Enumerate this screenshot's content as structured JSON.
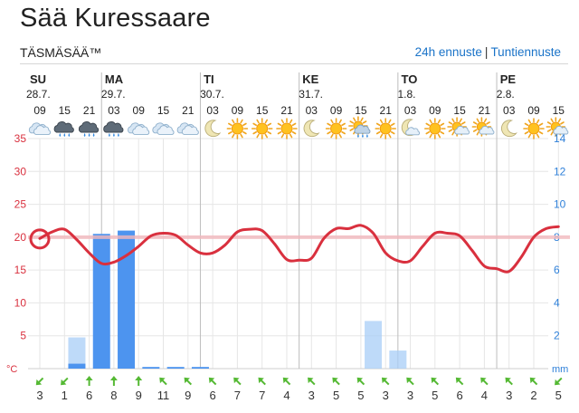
{
  "header": {
    "title": "Sää Kuressaare",
    "subtitle": "TÄSMÄSÄÄ™",
    "link_24h": "24h ennuste",
    "link_separator": "|",
    "link_hourly": "Tuntiennuste"
  },
  "days": [
    {
      "name": "SU",
      "date": "28.7."
    },
    {
      "name": "MA",
      "date": "29.7."
    },
    {
      "name": "TI",
      "date": "30.7."
    },
    {
      "name": "KE",
      "date": "31.7."
    },
    {
      "name": "TO",
      "date": "1.8."
    },
    {
      "name": "PE",
      "date": "2.8."
    }
  ],
  "chart_data": {
    "type": "line",
    "hours": [
      "09",
      "15",
      "21",
      "03",
      "09",
      "15",
      "21",
      "03",
      "09",
      "15",
      "21",
      "03",
      "09",
      "15",
      "21",
      "03",
      "09",
      "15",
      "21",
      "03",
      "09",
      "15"
    ],
    "icons": [
      "cloudy",
      "rain-cloud",
      "rain-cloud",
      "rain-cloud",
      "cloudy",
      "cloudy",
      "cloudy",
      "moon",
      "sun",
      "sun",
      "sun",
      "moon",
      "sun",
      "sun-rain",
      "sun",
      "moon-cloud",
      "sun",
      "sun-cloud",
      "sun-cloud",
      "moon",
      "sun",
      "sun-cloud"
    ],
    "temperature_series": {
      "name": "",
      "unit": "°C",
      "x": [
        0,
        0.5,
        1,
        1.5,
        2,
        2.5,
        3,
        3.5,
        4,
        4.5,
        5,
        5.5,
        6,
        6.5,
        7,
        7.5,
        8,
        8.5,
        9,
        9.5,
        10,
        10.5,
        11,
        11.5,
        12,
        12.5,
        13,
        13.5,
        14,
        14.5,
        15,
        15.5,
        16,
        16.5,
        17,
        17.5,
        18,
        18.5,
        19,
        19.5,
        20,
        20.5,
        21
      ],
      "y": [
        19.8,
        20.8,
        21.2,
        19.6,
        17.6,
        16.0,
        16.2,
        17.2,
        18.6,
        20.2,
        20.6,
        20.3,
        18.8,
        17.6,
        17.6,
        18.8,
        20.8,
        21.2,
        21.0,
        19.0,
        16.6,
        16.5,
        16.8,
        19.8,
        21.3,
        21.3,
        21.8,
        20.6,
        17.6,
        16.4,
        16.4,
        18.6,
        20.6,
        20.6,
        20.2,
        18.0,
        15.6,
        15.2,
        14.8,
        17.0,
        20.0,
        21.3,
        21.6
      ]
    },
    "precipitation_series": {
      "name": "",
      "unit": "mm",
      "categories": [
        "09",
        "15",
        "21",
        "03",
        "09",
        "15",
        "21",
        "03",
        "09",
        "15",
        "21",
        "03",
        "09",
        "15",
        "21",
        "03",
        "09",
        "15",
        "21",
        "03",
        "09"
      ],
      "values": [
        0,
        0.3,
        8.2,
        8.4,
        0.1,
        0.1,
        0.1,
        0,
        0,
        0,
        0,
        0,
        0,
        0,
        0,
        0,
        0,
        0,
        0,
        0,
        0
      ],
      "possible_max": [
        0,
        1.9,
        8.2,
        8.4,
        0.1,
        0.1,
        0.1,
        0,
        0,
        0,
        0,
        0,
        0,
        2.9,
        1.1,
        0,
        0,
        0,
        0,
        0,
        0
      ]
    },
    "wind": {
      "speeds": [
        3,
        1,
        6,
        8,
        9,
        11,
        9,
        6,
        7,
        7,
        4,
        3,
        5,
        5,
        3,
        3,
        5,
        6,
        4,
        3,
        2,
        5
      ],
      "directions_deg": [
        45,
        45,
        180,
        180,
        180,
        135,
        135,
        135,
        135,
        135,
        135,
        135,
        135,
        135,
        135,
        135,
        135,
        135,
        135,
        135,
        135,
        45
      ]
    },
    "left_axis": {
      "ticks": [
        5,
        10,
        15,
        20,
        25,
        30,
        35
      ],
      "unit_label": "°C",
      "ylim": [
        0,
        35
      ]
    },
    "right_axis": {
      "ticks": [
        2,
        4,
        6,
        8,
        10,
        12,
        14
      ],
      "unit_label": "mm",
      "ylim": [
        0,
        14
      ]
    },
    "current_temperature": 20,
    "reference_temperature": 20,
    "colors": {
      "temperature": "#d9303e",
      "left_axis": "#d9303e",
      "right_axis": "#2f80d9",
      "bar": "#4d94ef",
      "bar_possible": "#a8cdf7",
      "reference_line": "#f2b8bd",
      "wind_arrow": "#55b934",
      "grid": "#e6e6e6",
      "day_divider": "#bdbdbd"
    }
  }
}
